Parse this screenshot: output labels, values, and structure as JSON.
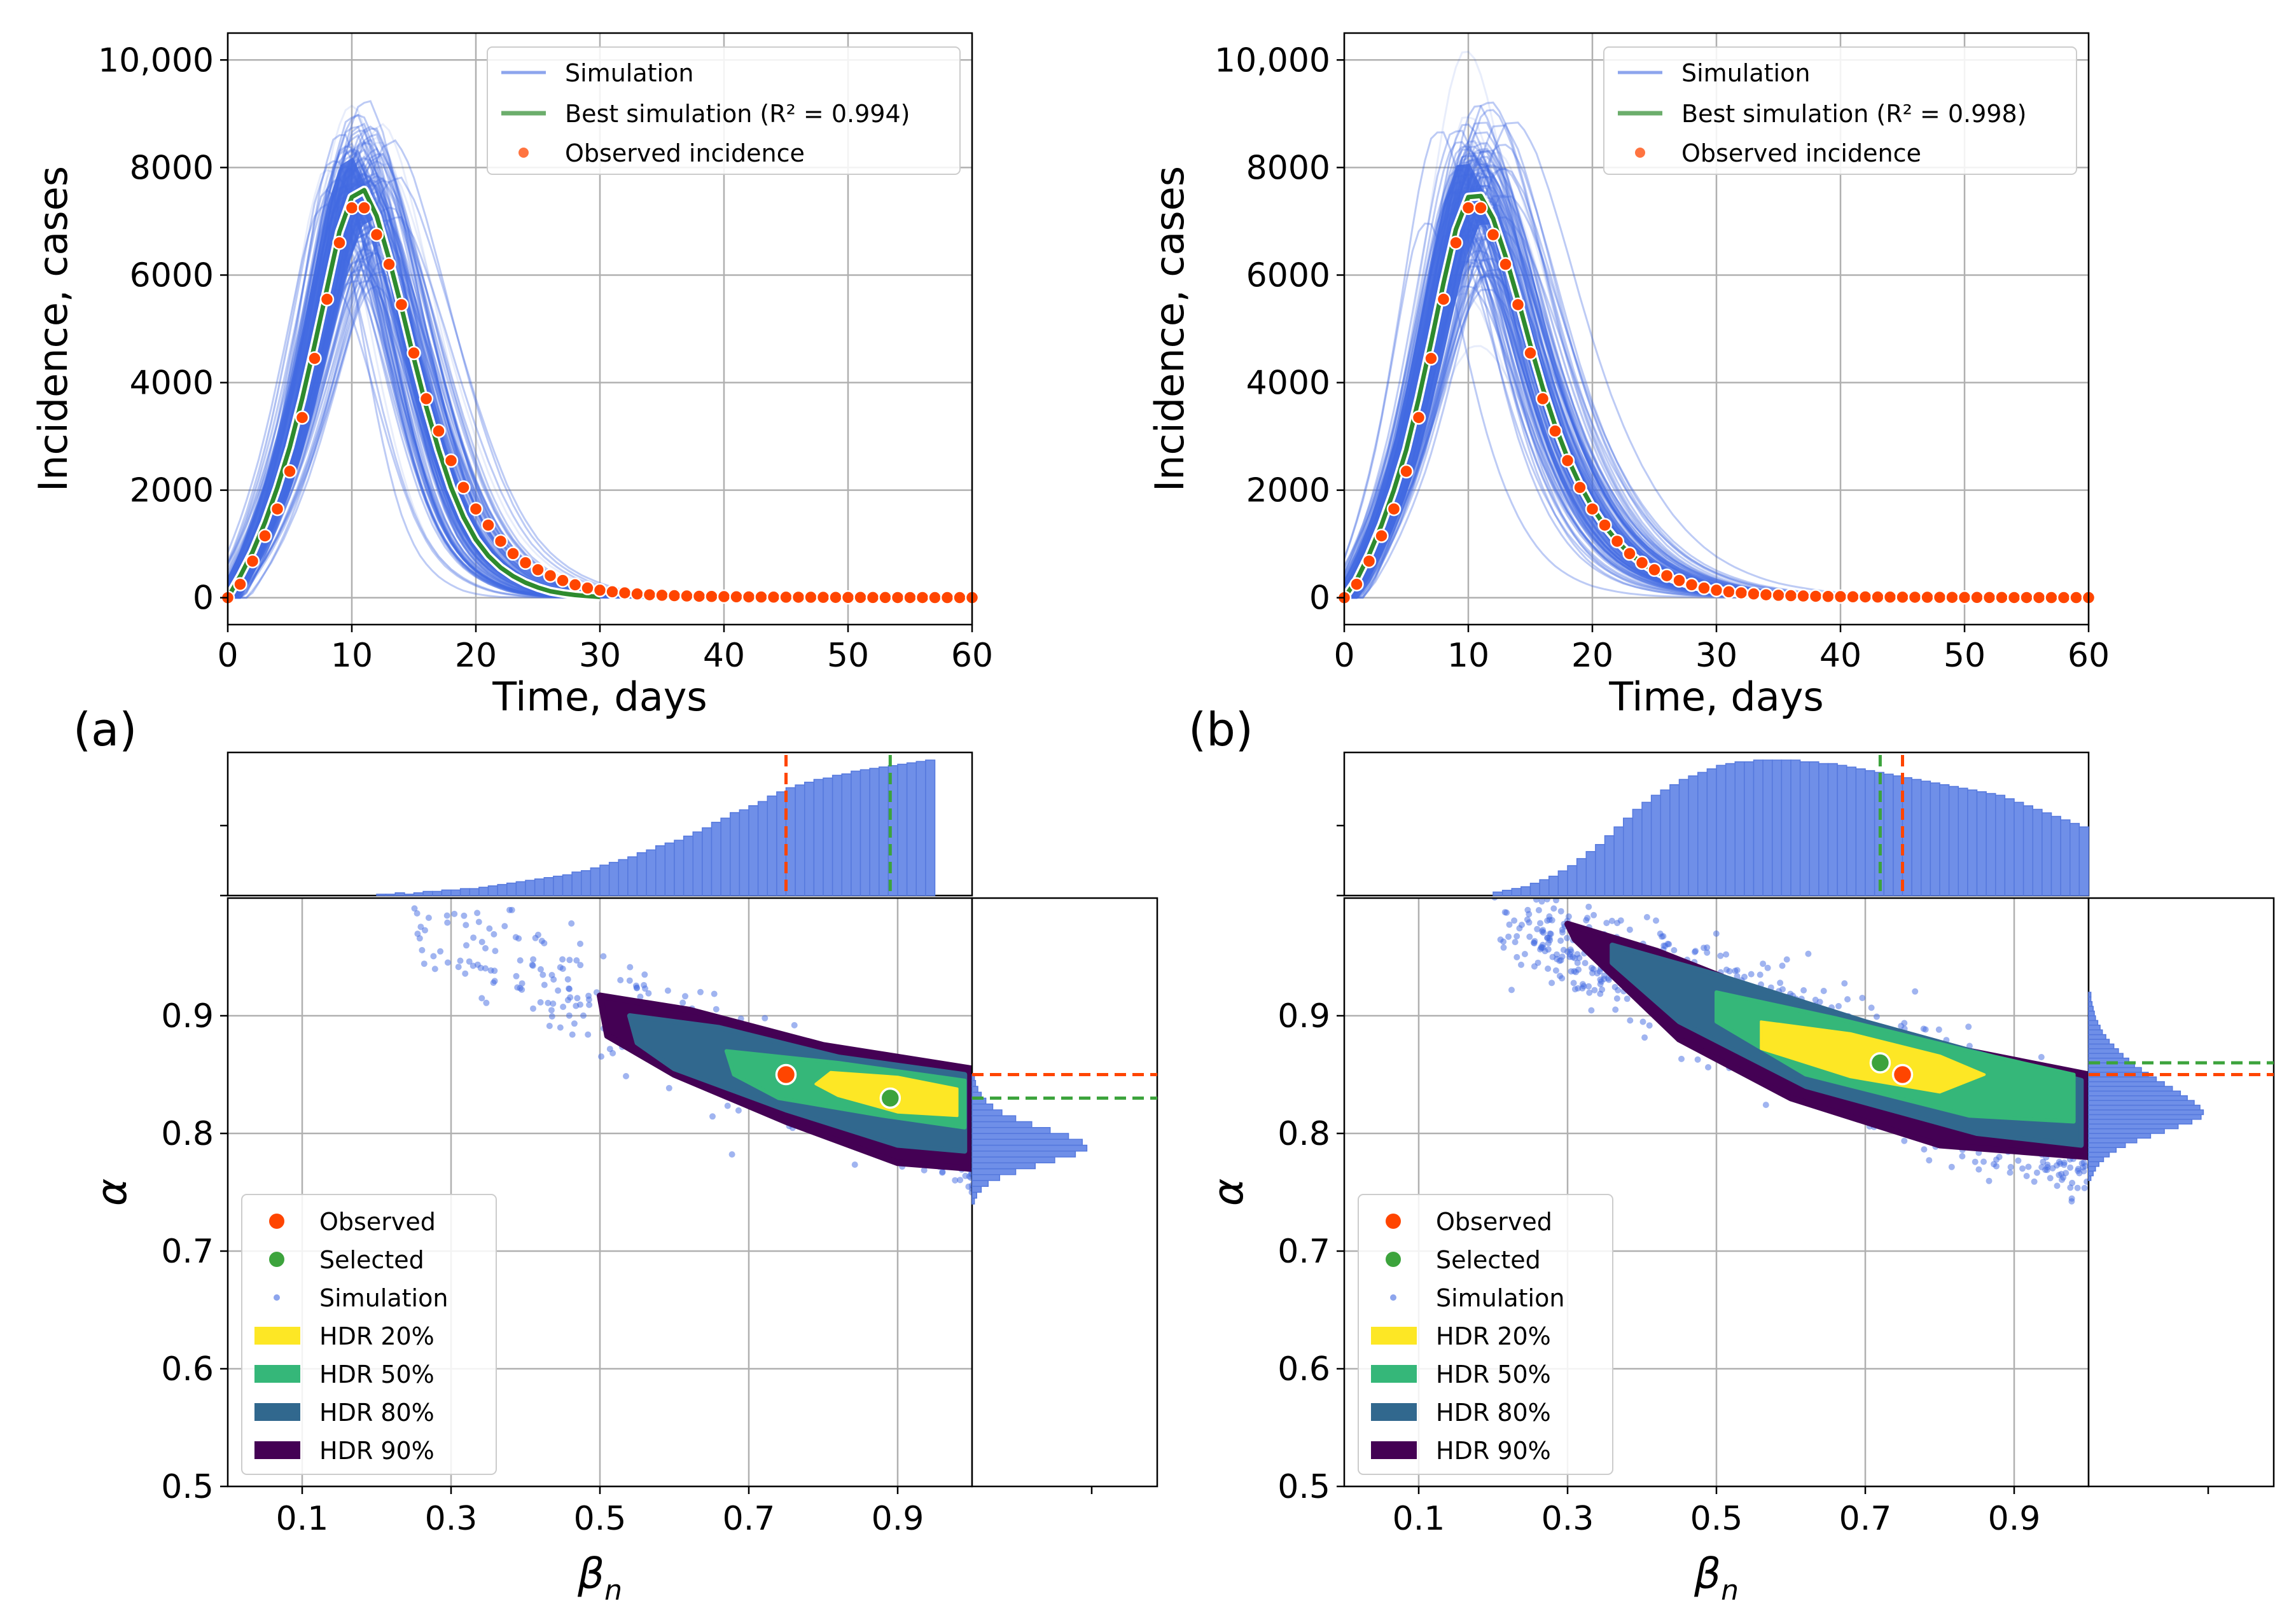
{
  "figure": {
    "panel_labels": [
      "(a)",
      "(b)"
    ],
    "colors": {
      "simulation": "#4169e1",
      "best": "#2e8b2e",
      "observed": "#ff4500",
      "selected": "#3ca33c",
      "hdr20": "#fde725",
      "hdr50": "#35b779",
      "hdr80": "#31688e",
      "hdr90": "#440154",
      "hist": "#6f8fe8"
    }
  },
  "chart_data": [
    {
      "panel": "a-top",
      "type": "line",
      "xlabel": "Time, days",
      "ylabel": "Incidence, cases",
      "xlim": [
        0,
        60
      ],
      "ylim": [
        -500,
        10500
      ],
      "xticks": [
        "0",
        "10",
        "20",
        "30",
        "40",
        "50",
        "60"
      ],
      "yticks": [
        "0",
        "2000",
        "4000",
        "6000",
        "8000",
        "10,000"
      ],
      "grid": true,
      "legend_position": "top-right",
      "legend": [
        "Simulation",
        "Best simulation (R² = 0.994)",
        "Observed incidence"
      ],
      "best_simulation": {
        "x": [
          0,
          1,
          2,
          3,
          4,
          5,
          6,
          7,
          8,
          9,
          10,
          11,
          12,
          13,
          14,
          15,
          16,
          17,
          18,
          19,
          20,
          21,
          22,
          23,
          24,
          25,
          26,
          27,
          28,
          29,
          30
        ],
        "y": [
          0,
          400,
          850,
          1400,
          2050,
          2800,
          3700,
          4700,
          5750,
          6800,
          7450,
          7580,
          7100,
          6300,
          5400,
          4450,
          3550,
          2750,
          2050,
          1500,
          1080,
          780,
          560,
          400,
          280,
          190,
          120,
          80,
          50,
          30,
          15
        ]
      },
      "observed": {
        "x": [
          0,
          1,
          2,
          3,
          4,
          5,
          6,
          7,
          8,
          9,
          10,
          11,
          12,
          13,
          14,
          15,
          16,
          17,
          18,
          19,
          20,
          21,
          22,
          23,
          24,
          25,
          26,
          27,
          28,
          29,
          30,
          31,
          32,
          33,
          34,
          35,
          36,
          37,
          38,
          39,
          40,
          41,
          42,
          43,
          44,
          45,
          46,
          47,
          48,
          49,
          50,
          51,
          52,
          53,
          54,
          55,
          56,
          57,
          58,
          59,
          60
        ],
        "y": [
          0,
          250,
          680,
          1150,
          1650,
          2350,
          3350,
          4450,
          5550,
          6600,
          7250,
          7250,
          6750,
          6200,
          5450,
          4550,
          3700,
          3100,
          2550,
          2050,
          1650,
          1350,
          1050,
          820,
          650,
          520,
          410,
          320,
          240,
          180,
          140,
          110,
          90,
          70,
          55,
          45,
          38,
          32,
          27,
          23,
          20,
          17,
          15,
          13,
          11,
          10,
          9,
          8,
          7,
          6,
          5,
          5,
          4,
          4,
          3,
          3,
          3,
          2,
          2,
          2,
          2
        ]
      }
    },
    {
      "panel": "b-top",
      "type": "line",
      "xlabel": "Time, days",
      "ylabel": "Incidence, cases",
      "xlim": [
        0,
        60
      ],
      "ylim": [
        -500,
        10500
      ],
      "xticks": [
        "0",
        "10",
        "20",
        "30",
        "40",
        "50",
        "60"
      ],
      "yticks": [
        "0",
        "2000",
        "4000",
        "6000",
        "8000",
        "10,000"
      ],
      "grid": true,
      "legend_position": "top-right",
      "legend": [
        "Simulation",
        "Best simulation (R² = 0.998)",
        "Observed incidence"
      ],
      "best_simulation": {
        "x": [
          0,
          1,
          2,
          3,
          4,
          5,
          6,
          7,
          8,
          9,
          10,
          11,
          12,
          13,
          14,
          15,
          16,
          17,
          18,
          19,
          20,
          21,
          22,
          23,
          24,
          25,
          26,
          27,
          28,
          29,
          30,
          31,
          32,
          33,
          34,
          35
        ],
        "y": [
          0,
          330,
          800,
          1350,
          2000,
          2750,
          3700,
          4750,
          5850,
          6850,
          7450,
          7470,
          7050,
          6350,
          5550,
          4700,
          3900,
          3200,
          2600,
          2100,
          1680,
          1330,
          1050,
          820,
          640,
          500,
          390,
          300,
          230,
          180,
          140,
          105,
          80,
          60,
          45,
          35
        ]
      },
      "observed": {
        "x": [
          0,
          1,
          2,
          3,
          4,
          5,
          6,
          7,
          8,
          9,
          10,
          11,
          12,
          13,
          14,
          15,
          16,
          17,
          18,
          19,
          20,
          21,
          22,
          23,
          24,
          25,
          26,
          27,
          28,
          29,
          30,
          31,
          32,
          33,
          34,
          35,
          36,
          37,
          38,
          39,
          40,
          41,
          42,
          43,
          44,
          45,
          46,
          47,
          48,
          49,
          50,
          51,
          52,
          53,
          54,
          55,
          56,
          57,
          58,
          59,
          60
        ],
        "y": [
          0,
          250,
          680,
          1150,
          1650,
          2350,
          3350,
          4450,
          5550,
          6600,
          7250,
          7250,
          6750,
          6200,
          5450,
          4550,
          3700,
          3100,
          2550,
          2050,
          1650,
          1350,
          1050,
          820,
          650,
          520,
          410,
          320,
          240,
          180,
          140,
          110,
          90,
          70,
          55,
          45,
          38,
          32,
          27,
          23,
          20,
          17,
          15,
          13,
          11,
          10,
          9,
          8,
          7,
          6,
          5,
          5,
          4,
          4,
          3,
          3,
          3,
          2,
          2,
          2,
          2
        ]
      }
    },
    {
      "panel": "a-bottom",
      "type": "scatter",
      "xlabel": "βn",
      "ylabel": "α",
      "xlim": [
        0,
        1
      ],
      "ylim": [
        0.5,
        1.0
      ],
      "xticks": [
        "0.1",
        "0.3",
        "0.5",
        "0.7",
        "0.9"
      ],
      "yticks": [
        "0.5",
        "0.6",
        "0.7",
        "0.8",
        "0.9"
      ],
      "grid": true,
      "legend_position": "lower-left",
      "legend": [
        "Observed",
        "Selected",
        "Simulation",
        "HDR 20%",
        "HDR 50%",
        "HDR 80%",
        "HDR 90%"
      ],
      "observed_point": {
        "beta": 0.75,
        "alpha": 0.85
      },
      "selected_point": {
        "beta": 0.89,
        "alpha": 0.83
      },
      "sim_cloud": {
        "beta_range": [
          0.25,
          1.0
        ],
        "center_beta": 0.8,
        "center_alpha": 0.84,
        "slope": -0.25,
        "spread": 0.022
      },
      "hdr_regions": {
        "hdr90": [
          [
            0.5,
            0.917
          ],
          [
            0.62,
            0.905
          ],
          [
            0.8,
            0.875
          ],
          [
            1.0,
            0.855
          ],
          [
            1.0,
            0.77
          ],
          [
            0.9,
            0.775
          ],
          [
            0.75,
            0.81
          ],
          [
            0.6,
            0.85
          ],
          [
            0.51,
            0.883
          ]
        ],
        "hdr80": [
          [
            0.54,
            0.9
          ],
          [
            0.66,
            0.89
          ],
          [
            0.82,
            0.865
          ],
          [
            0.99,
            0.85
          ],
          [
            0.99,
            0.785
          ],
          [
            0.9,
            0.79
          ],
          [
            0.75,
            0.82
          ],
          [
            0.6,
            0.855
          ],
          [
            0.55,
            0.877
          ]
        ],
        "hdr50": [
          [
            0.67,
            0.87
          ],
          [
            0.82,
            0.86
          ],
          [
            0.99,
            0.845
          ],
          [
            0.99,
            0.805
          ],
          [
            0.88,
            0.815
          ],
          [
            0.74,
            0.83
          ],
          [
            0.68,
            0.85
          ]
        ],
        "hdr20": [
          [
            0.81,
            0.852
          ],
          [
            0.9,
            0.848
          ],
          [
            0.98,
            0.838
          ],
          [
            0.98,
            0.815
          ],
          [
            0.9,
            0.818
          ],
          [
            0.82,
            0.832
          ],
          [
            0.79,
            0.842
          ]
        ]
      },
      "marginal_top": {
        "bin_edges_start": 0.2,
        "bin_width": 0.0125,
        "heights": [
          1,
          1,
          2,
          1,
          2,
          3,
          3,
          4,
          4,
          5,
          5,
          6,
          7,
          8,
          9,
          10,
          11,
          12,
          13,
          14,
          15,
          17,
          18,
          20,
          22,
          24,
          26,
          28,
          31,
          33,
          36,
          38,
          40,
          43,
          46,
          49,
          53,
          56,
          60,
          62,
          65,
          68,
          72,
          75,
          78,
          80,
          82,
          84,
          85,
          87,
          88,
          90,
          91,
          92,
          93,
          94,
          95,
          96,
          97,
          98
        ]
      },
      "marginal_right": {
        "bin_edges_start": 0.74,
        "bin_width": 0.005,
        "heights": [
          2,
          4,
          8,
          14,
          24,
          38,
          55,
          72,
          90,
          100,
          96,
          84,
          68,
          52,
          38,
          26,
          18,
          12,
          8,
          5,
          3,
          2
        ]
      },
      "marginal_lines": {
        "observed_beta": 0.75,
        "selected_beta": 0.89,
        "observed_alpha": 0.85,
        "selected_alpha": 0.83
      }
    },
    {
      "panel": "b-bottom",
      "type": "scatter",
      "xlabel": "βn",
      "ylabel": "α",
      "xlim": [
        0,
        1
      ],
      "ylim": [
        0.5,
        1.0
      ],
      "xticks": [
        "0.1",
        "0.3",
        "0.5",
        "0.7",
        "0.9"
      ],
      "yticks": [
        "0.5",
        "0.6",
        "0.7",
        "0.8",
        "0.9"
      ],
      "grid": true,
      "legend_position": "lower-left",
      "legend": [
        "Observed",
        "Selected",
        "Simulation",
        "HDR 20%",
        "HDR 50%",
        "HDR 80%",
        "HDR 90%"
      ],
      "observed_point": {
        "beta": 0.75,
        "alpha": 0.85
      },
      "selected_point": {
        "beta": 0.72,
        "alpha": 0.86
      },
      "sim_cloud": {
        "beta_range": [
          0.2,
          1.0
        ],
        "center_beta": 0.7,
        "center_alpha": 0.86,
        "slope": -0.25,
        "spread": 0.022
      },
      "hdr_regions": {
        "hdr90": [
          [
            0.3,
            0.978
          ],
          [
            0.42,
            0.955
          ],
          [
            0.6,
            0.91
          ],
          [
            0.8,
            0.875
          ],
          [
            1.0,
            0.85
          ],
          [
            1.0,
            0.78
          ],
          [
            0.8,
            0.79
          ],
          [
            0.6,
            0.83
          ],
          [
            0.45,
            0.88
          ],
          [
            0.31,
            0.965
          ]
        ],
        "hdr80": [
          [
            0.36,
            0.96
          ],
          [
            0.5,
            0.935
          ],
          [
            0.7,
            0.895
          ],
          [
            0.9,
            0.86
          ],
          [
            0.99,
            0.845
          ],
          [
            0.99,
            0.79
          ],
          [
            0.85,
            0.8
          ],
          [
            0.62,
            0.84
          ],
          [
            0.45,
            0.895
          ],
          [
            0.36,
            0.945
          ]
        ],
        "hdr50": [
          [
            0.5,
            0.92
          ],
          [
            0.66,
            0.898
          ],
          [
            0.84,
            0.87
          ],
          [
            0.98,
            0.85
          ],
          [
            0.98,
            0.81
          ],
          [
            0.84,
            0.815
          ],
          [
            0.62,
            0.85
          ],
          [
            0.5,
            0.895
          ]
        ],
        "hdr20": [
          [
            0.56,
            0.895
          ],
          [
            0.68,
            0.885
          ],
          [
            0.8,
            0.866
          ],
          [
            0.86,
            0.85
          ],
          [
            0.8,
            0.835
          ],
          [
            0.68,
            0.848
          ],
          [
            0.56,
            0.872
          ]
        ]
      },
      "marginal_top": {
        "bin_edges_start": 0.2,
        "bin_width": 0.0125,
        "heights": [
          2,
          3,
          4,
          5,
          7,
          9,
          11,
          14,
          17,
          21,
          25,
          29,
          34,
          39,
          44,
          49,
          53,
          57,
          60,
          63,
          66,
          68,
          70,
          72,
          74,
          75,
          76,
          76,
          77,
          77,
          77,
          77,
          77,
          76,
          76,
          75,
          75,
          74,
          73,
          72,
          71,
          70,
          69,
          68,
          67,
          66,
          65,
          64,
          63,
          62,
          61,
          60,
          59,
          58,
          57,
          55,
          53,
          51,
          49,
          47,
          45,
          43,
          41,
          39
        ]
      },
      "marginal_right": {
        "bin_edges_start": 0.76,
        "bin_width": 0.004,
        "heights": [
          2,
          4,
          6,
          9,
          13,
          18,
          24,
          32,
          42,
          54,
          66,
          78,
          90,
          98,
          100,
          97,
          92,
          86,
          80,
          73,
          66,
          59,
          52,
          46,
          40,
          35,
          30,
          26,
          22,
          18,
          15,
          12,
          10,
          8,
          6,
          5,
          4,
          3,
          2,
          2
        ]
      },
      "marginal_lines": {
        "observed_beta": 0.75,
        "selected_beta": 0.72,
        "observed_alpha": 0.85,
        "selected_alpha": 0.86
      }
    }
  ]
}
